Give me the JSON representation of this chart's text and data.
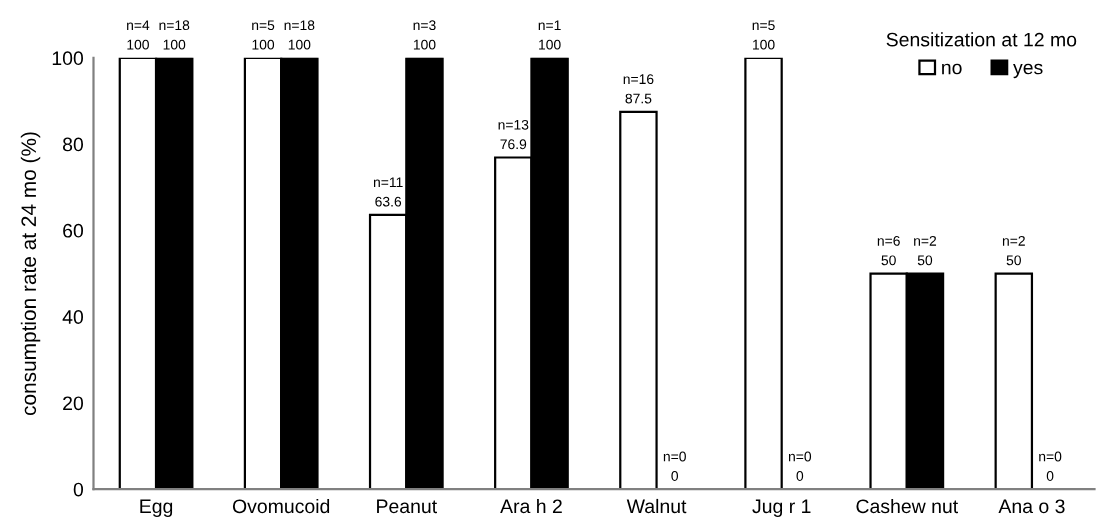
{
  "chart_data": {
    "type": "bar",
    "ylabel": "consumption rate at 24 mo (%)",
    "legend_title": "Sensitization at 12 mo",
    "legend": "top right",
    "grid": false,
    "data_labels": true,
    "categories": [
      "Egg",
      "Ovomucoid",
      "Peanut",
      "Ara h 2",
      "Walnut",
      "Jug r 1",
      "Cashew nut",
      "Ana o 3"
    ],
    "ylim": [
      0,
      100
    ],
    "yticks": [
      0,
      20,
      40,
      60,
      80,
      100
    ],
    "series": [
      {
        "name": "no",
        "color": "#ffffff",
        "values": [
          100,
          100,
          63.6,
          76.9,
          87.5,
          100,
          50,
          50
        ]
      },
      {
        "name": "yes",
        "color": "#000000",
        "values": [
          100,
          100,
          100,
          100,
          0,
          0,
          50,
          0
        ]
      }
    ],
    "annotations": [
      {
        "text": "n=4",
        "x": "Egg",
        "y": 100
      },
      {
        "text": "n=18",
        "x": "Egg",
        "y": 100
      },
      {
        "text": "n=5",
        "x": "Ovomucoid",
        "y": 100
      },
      {
        "text": "n=18",
        "x": "Ovomucoid",
        "y": 100
      },
      {
        "text": "n=11",
        "x": "Peanut",
        "y": 63.6
      },
      {
        "text": "n=3",
        "x": "Peanut",
        "y": 100
      },
      {
        "text": "n=13",
        "x": "Ara h 2",
        "y": 76.9
      },
      {
        "text": "n=1",
        "x": "Ara h 2",
        "y": 100
      },
      {
        "text": "n=16",
        "x": "Walnut",
        "y": 87.5
      },
      {
        "text": "n=0",
        "x": "Walnut",
        "y": 0
      },
      {
        "text": "n=5",
        "x": "Jug r 1",
        "y": 100
      },
      {
        "text": "n=0",
        "x": "Jug r 1",
        "y": 0
      },
      {
        "text": "n=6",
        "x": "Cashew nut",
        "y": 50
      },
      {
        "text": "n=2",
        "x": "Cashew nut",
        "y": 50
      },
      {
        "text": "n=2",
        "x": "Ana o 3",
        "y": 50
      },
      {
        "text": "n=0",
        "x": "Ana o 3",
        "y": 0
      }
    ]
  }
}
